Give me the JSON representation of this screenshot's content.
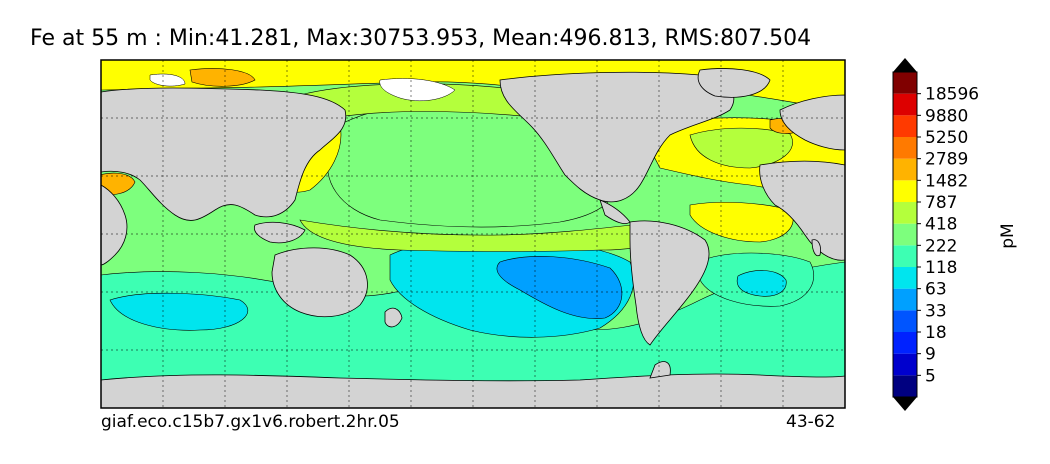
{
  "title": "Fe at 55 m : Min:41.281, Max:30753.953, Mean:496.813, RMS:807.504",
  "footer": {
    "case_name": "giaf.eco.c15b7.gx1v6.robert.2hr.05",
    "years": "43-62"
  },
  "colorbar": {
    "unit": "pM",
    "levels": [
      "5",
      "9",
      "18",
      "33",
      "63",
      "118",
      "222",
      "418",
      "787",
      "1482",
      "2789",
      "5250",
      "9880",
      "18596"
    ],
    "colors": [
      "#000080",
      "#0000cd",
      "#0022ff",
      "#0055ff",
      "#00a0ff",
      "#00e5ee",
      "#3dffb3",
      "#7dff7d",
      "#b4ff3c",
      "#ffff00",
      "#ffb300",
      "#ff7a00",
      "#ff3a00",
      "#dd0000",
      "#800000"
    ],
    "extend": "both"
  },
  "map": {
    "land_color": "#d3d3d3",
    "ocean_colors": {
      "band_18": "#3dffb3",
      "band_33": "#00e5ee",
      "band_63": "#00a0ff",
      "band_418": "#b4ff3c",
      "band_787": "#7dff7d",
      "band_1482": "#ffff00",
      "band_2789": "#ffb300",
      "band_5250": "#ff7a00"
    },
    "grid": "dashed"
  }
}
